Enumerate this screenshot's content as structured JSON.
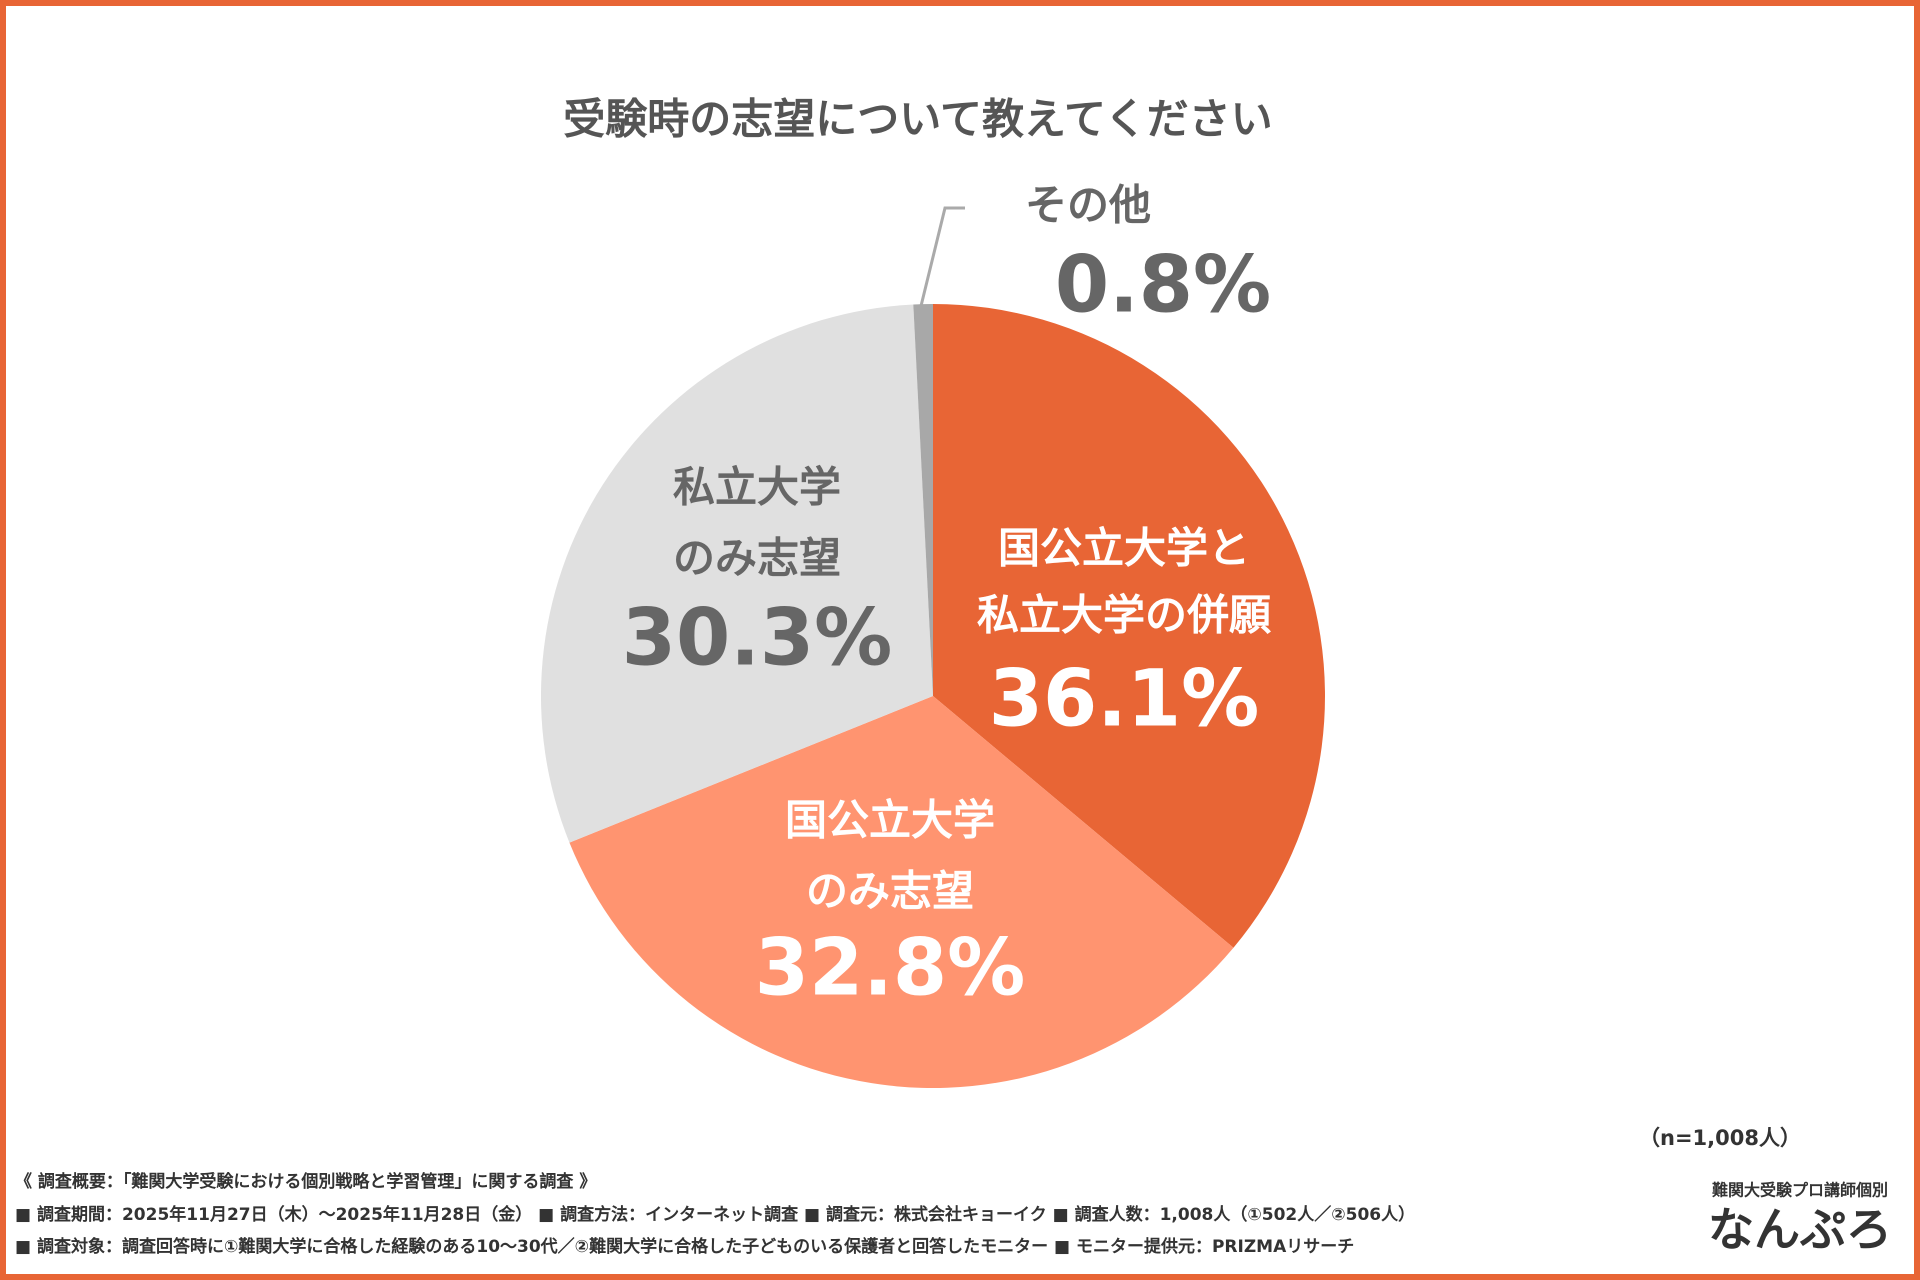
{
  "chart_data": {
    "type": "pie",
    "title": "受験時の志望について教えてください",
    "categories": [
      [
        "国公立大学と",
        "私立大学の併願"
      ],
      [
        "国公立大学",
        "のみ志望"
      ],
      [
        "私立大学",
        "のみ志望"
      ],
      [
        "その他"
      ]
    ],
    "values": [
      36.1,
      32.8,
      30.3,
      0.8
    ],
    "value_labels": [
      "36.1%",
      "32.8%",
      "30.3%",
      "0.8%"
    ],
    "colors": [
      "#e86535",
      "#ff9470",
      "#e0e0e0",
      "#a8a8a8"
    ],
    "sample_size": "（n=1,008人）"
  },
  "notes": [
    "《 調査概要：「難関大学受験における個別戦略と学習管理」に関する調査 》",
    "■ 調査期間：2025年11月27日（木）〜2025年11月28日（金）  ■ 調査方法：インターネット調査  ■ 調査元：株式会社キョーイク  ■ 調査人数：1,008人（①502人／②506人）",
    "■ 調査対象：調査回答時に①難関大学に合格した経験のある10〜30代／②難関大学に合格した子どものいる保護者と回答したモニター  ■ モニター提供元：PRIZMAリサーチ"
  ],
  "logo": {
    "tagline": "難関大受験プロ講師個別",
    "name": "なんぷろ"
  }
}
